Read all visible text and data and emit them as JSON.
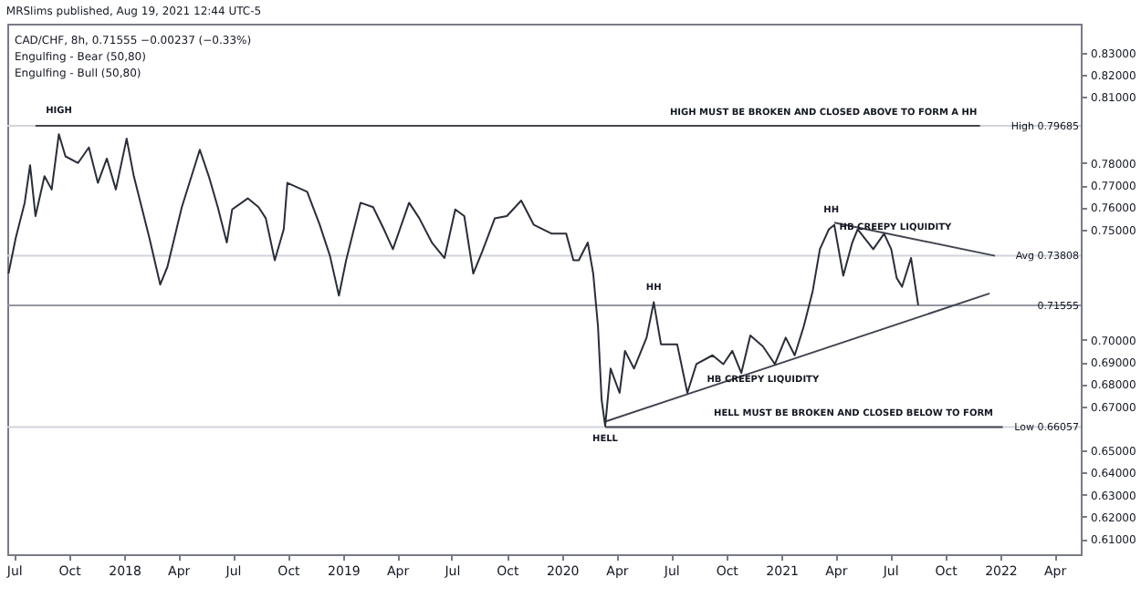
{
  "chart_data": {
    "type": "line",
    "title": "MRSlims published, Aug 19, 2021 12:44 UTC-5",
    "annotations": [
      "CAD/CHF, 8h, 0.71555 −0.00237 (−0.33%)",
      "Engulfing - Bear (50,80)",
      "Engulfing - Bull (50,80)",
      {
        "text": "HIGH",
        "x": "2017-09-14",
        "y": 0.8
      },
      {
        "text": "HIGH MUST BE BROKEN AND CLOSED ABOVE TO FORM A HH",
        "x": "2021-11-23",
        "y": 0.8
      },
      {
        "text": "HH",
        "x": "2020-06-02",
        "y": 0.72
      },
      {
        "text": "HH",
        "x": "2021-03-25",
        "y": 0.755
      },
      {
        "text": "HB CREEPY LIQUIDITY",
        "x": "2021-07-10",
        "y": 0.7473
      },
      {
        "text": "HB CREEPY LIQUIDITY",
        "x": "2020-12-01",
        "y": 0.6868
      },
      {
        "text": "HELL",
        "x": "2020-03-13",
        "y": 0.66057
      },
      {
        "text": "HELL MUST BE BROKEN AND CLOSED BELOW TO FORM",
        "x": "2021-12-20",
        "y": 0.664
      }
    ],
    "series": [
      {
        "color": "#2a2e39",
        "x": [
          "2017-06-22",
          "2017-07-04",
          "2017-07-19",
          "2017-07-28",
          "2017-08-06",
          "2017-08-21",
          "2017-09-02",
          "2017-09-14",
          "2017-09-25",
          "2017-10-16",
          "2017-11-03",
          "2017-11-18",
          "2017-12-03",
          "2017-12-18",
          "2018-01-05",
          "2018-01-17",
          "2018-02-12",
          "2018-03-02",
          "2018-03-14",
          "2018-04-07",
          "2018-05-07",
          "2018-05-22",
          "2018-06-06",
          "2018-06-21",
          "2018-06-30",
          "2018-07-26",
          "2018-08-13",
          "2018-08-25",
          "2018-09-09",
          "2018-09-24",
          "2018-09-30",
          "2018-11-02",
          "2018-11-23",
          "2018-12-10",
          "2018-12-25",
          "2019-01-06",
          "2019-01-30",
          "2019-02-20",
          "2019-03-10",
          "2019-03-25",
          "2019-04-21",
          "2019-05-08",
          "2019-05-29",
          "2019-06-19",
          "2019-07-07",
          "2019-07-22",
          "2019-08-06",
          "2019-08-21",
          "2019-09-11",
          "2019-10-01",
          "2019-10-25",
          "2019-11-15",
          "2019-12-15",
          "2020-01-08",
          "2020-01-20",
          "2020-01-29",
          "2020-02-13",
          "2020-02-22",
          "2020-03-01",
          "2020-03-07",
          "2020-03-13",
          "2020-03-22",
          "2020-04-06",
          "2020-04-15",
          "2020-04-30",
          "2020-05-21",
          "2020-06-02",
          "2020-06-14",
          "2020-07-11",
          "2020-07-28",
          "2020-08-12",
          "2020-09-08",
          "2020-09-26",
          "2020-10-11",
          "2020-10-26",
          "2020-11-10",
          "2020-12-01",
          "2020-12-21",
          "2021-01-08",
          "2021-01-23",
          "2021-02-07",
          "2021-02-22",
          "2021-03-06",
          "2021-03-21",
          "2021-03-30",
          "2021-04-14",
          "2021-04-29",
          "2021-05-08",
          "2021-06-03",
          "2021-06-21",
          "2021-07-03",
          "2021-07-12",
          "2021-07-21",
          "2021-08-05",
          "2021-08-17"
        ],
        "values": [
          0.73,
          0.746,
          0.762,
          0.779,
          0.756,
          0.774,
          0.768,
          0.793,
          0.783,
          0.78,
          0.787,
          0.771,
          0.782,
          0.768,
          0.791,
          0.774,
          0.746,
          0.725,
          0.733,
          0.76,
          0.786,
          0.774,
          0.76,
          0.744,
          0.759,
          0.764,
          0.76,
          0.755,
          0.736,
          0.75,
          0.771,
          0.767,
          0.752,
          0.738,
          0.72,
          0.736,
          0.762,
          0.76,
          0.75,
          0.741,
          0.762,
          0.755,
          0.744,
          0.737,
          0.759,
          0.756,
          0.73,
          0.74,
          0.755,
          0.756,
          0.763,
          0.752,
          0.748,
          0.748,
          0.736,
          0.736,
          0.744,
          0.73,
          0.706,
          0.673,
          0.661,
          0.687,
          0.676,
          0.695,
          0.687,
          0.701,
          0.717,
          0.698,
          0.698,
          0.676,
          0.689,
          0.693,
          0.689,
          0.695,
          0.685,
          0.702,
          0.697,
          0.689,
          0.701,
          0.693,
          0.706,
          0.722,
          0.741,
          0.75,
          0.752,
          0.729,
          0.744,
          0.75,
          0.741,
          0.748,
          0.741,
          0.728,
          0.724,
          0.737,
          0.7156
        ]
      },
      {
        "color": "#434651",
        "x": [
          "2017-08-06",
          "2021-11-28"
        ],
        "values": [
          0.79685,
          0.79685
        ]
      },
      {
        "color": "#434651",
        "x": [
          "2020-03-13",
          "2022-01-05"
        ],
        "values": [
          0.66057,
          0.66057
        ]
      },
      {
        "color": "#434651",
        "x": [
          "2020-03-13",
          "2021-12-14"
        ],
        "values": [
          0.663,
          0.721
        ]
      },
      {
        "color": "#434651",
        "x": [
          "2021-03-30",
          "2021-12-23"
        ],
        "values": [
          0.753,
          0.738
        ]
      }
    ],
    "ref_lines": [
      {
        "axis": "y",
        "value": 0.79685,
        "label": "High 0.79685",
        "color": "#d1d4dc"
      },
      {
        "axis": "y",
        "value": 0.73808,
        "label": "Avg 0.73808",
        "color": "#d1d4dc"
      },
      {
        "axis": "y",
        "value": 0.71555,
        "label": "0.71555",
        "color": "#9598a1"
      },
      {
        "axis": "y",
        "value": 0.66057,
        "label": "Low 0.66057",
        "color": "#d1d4dc"
      }
    ],
    "xlim": [
      "2017-06-20",
      "2022-05-15"
    ],
    "xticks": [
      {
        "value": "2017-07-01",
        "label": "Jul"
      },
      {
        "value": "2017-10-01",
        "label": "Oct"
      },
      {
        "value": "2018-01-01",
        "label": "2018"
      },
      {
        "value": "2018-04-01",
        "label": "Apr"
      },
      {
        "value": "2018-07-01",
        "label": "Jul"
      },
      {
        "value": "2018-10-01",
        "label": "Oct"
      },
      {
        "value": "2019-01-01",
        "label": "2019"
      },
      {
        "value": "2019-04-01",
        "label": "Apr"
      },
      {
        "value": "2019-07-01",
        "label": "Jul"
      },
      {
        "value": "2019-10-01",
        "label": "Oct"
      },
      {
        "value": "2020-01-01",
        "label": "2020"
      },
      {
        "value": "2020-04-01",
        "label": "Apr"
      },
      {
        "value": "2020-07-01",
        "label": "Jul"
      },
      {
        "value": "2020-10-01",
        "label": "Oct"
      },
      {
        "value": "2021-01-01",
        "label": "2021"
      },
      {
        "value": "2021-04-01",
        "label": "Apr"
      },
      {
        "value": "2021-07-01",
        "label": "Jul"
      },
      {
        "value": "2021-10-01",
        "label": "Oct"
      },
      {
        "value": "2022-01-01",
        "label": "2022"
      },
      {
        "value": "2022-04-01",
        "label": "Apr"
      }
    ],
    "ylim": [
      0.603,
      0.843
    ],
    "yticks": [
      {
        "value": 0.61,
        "label": "0.61000"
      },
      {
        "value": 0.62,
        "label": "0.62000"
      },
      {
        "value": 0.63,
        "label": "0.63000"
      },
      {
        "value": 0.64,
        "label": "0.64000"
      },
      {
        "value": 0.65,
        "label": "0.65000"
      },
      {
        "value": 0.67,
        "label": "0.67000"
      },
      {
        "value": 0.68,
        "label": "0.68000"
      },
      {
        "value": 0.69,
        "label": "0.69000"
      },
      {
        "value": 0.7,
        "label": "0.70000"
      },
      {
        "value": 0.75,
        "label": "0.75000"
      },
      {
        "value": 0.76,
        "label": "0.76000"
      },
      {
        "value": 0.77,
        "label": "0.77000"
      },
      {
        "value": 0.78,
        "label": "0.78000"
      },
      {
        "value": 0.81,
        "label": "0.81000"
      },
      {
        "value": 0.82,
        "label": "0.82000"
      },
      {
        "value": 0.83,
        "label": "0.83000"
      }
    ],
    "grid": false,
    "marker": "none",
    "line_style": "solid"
  }
}
